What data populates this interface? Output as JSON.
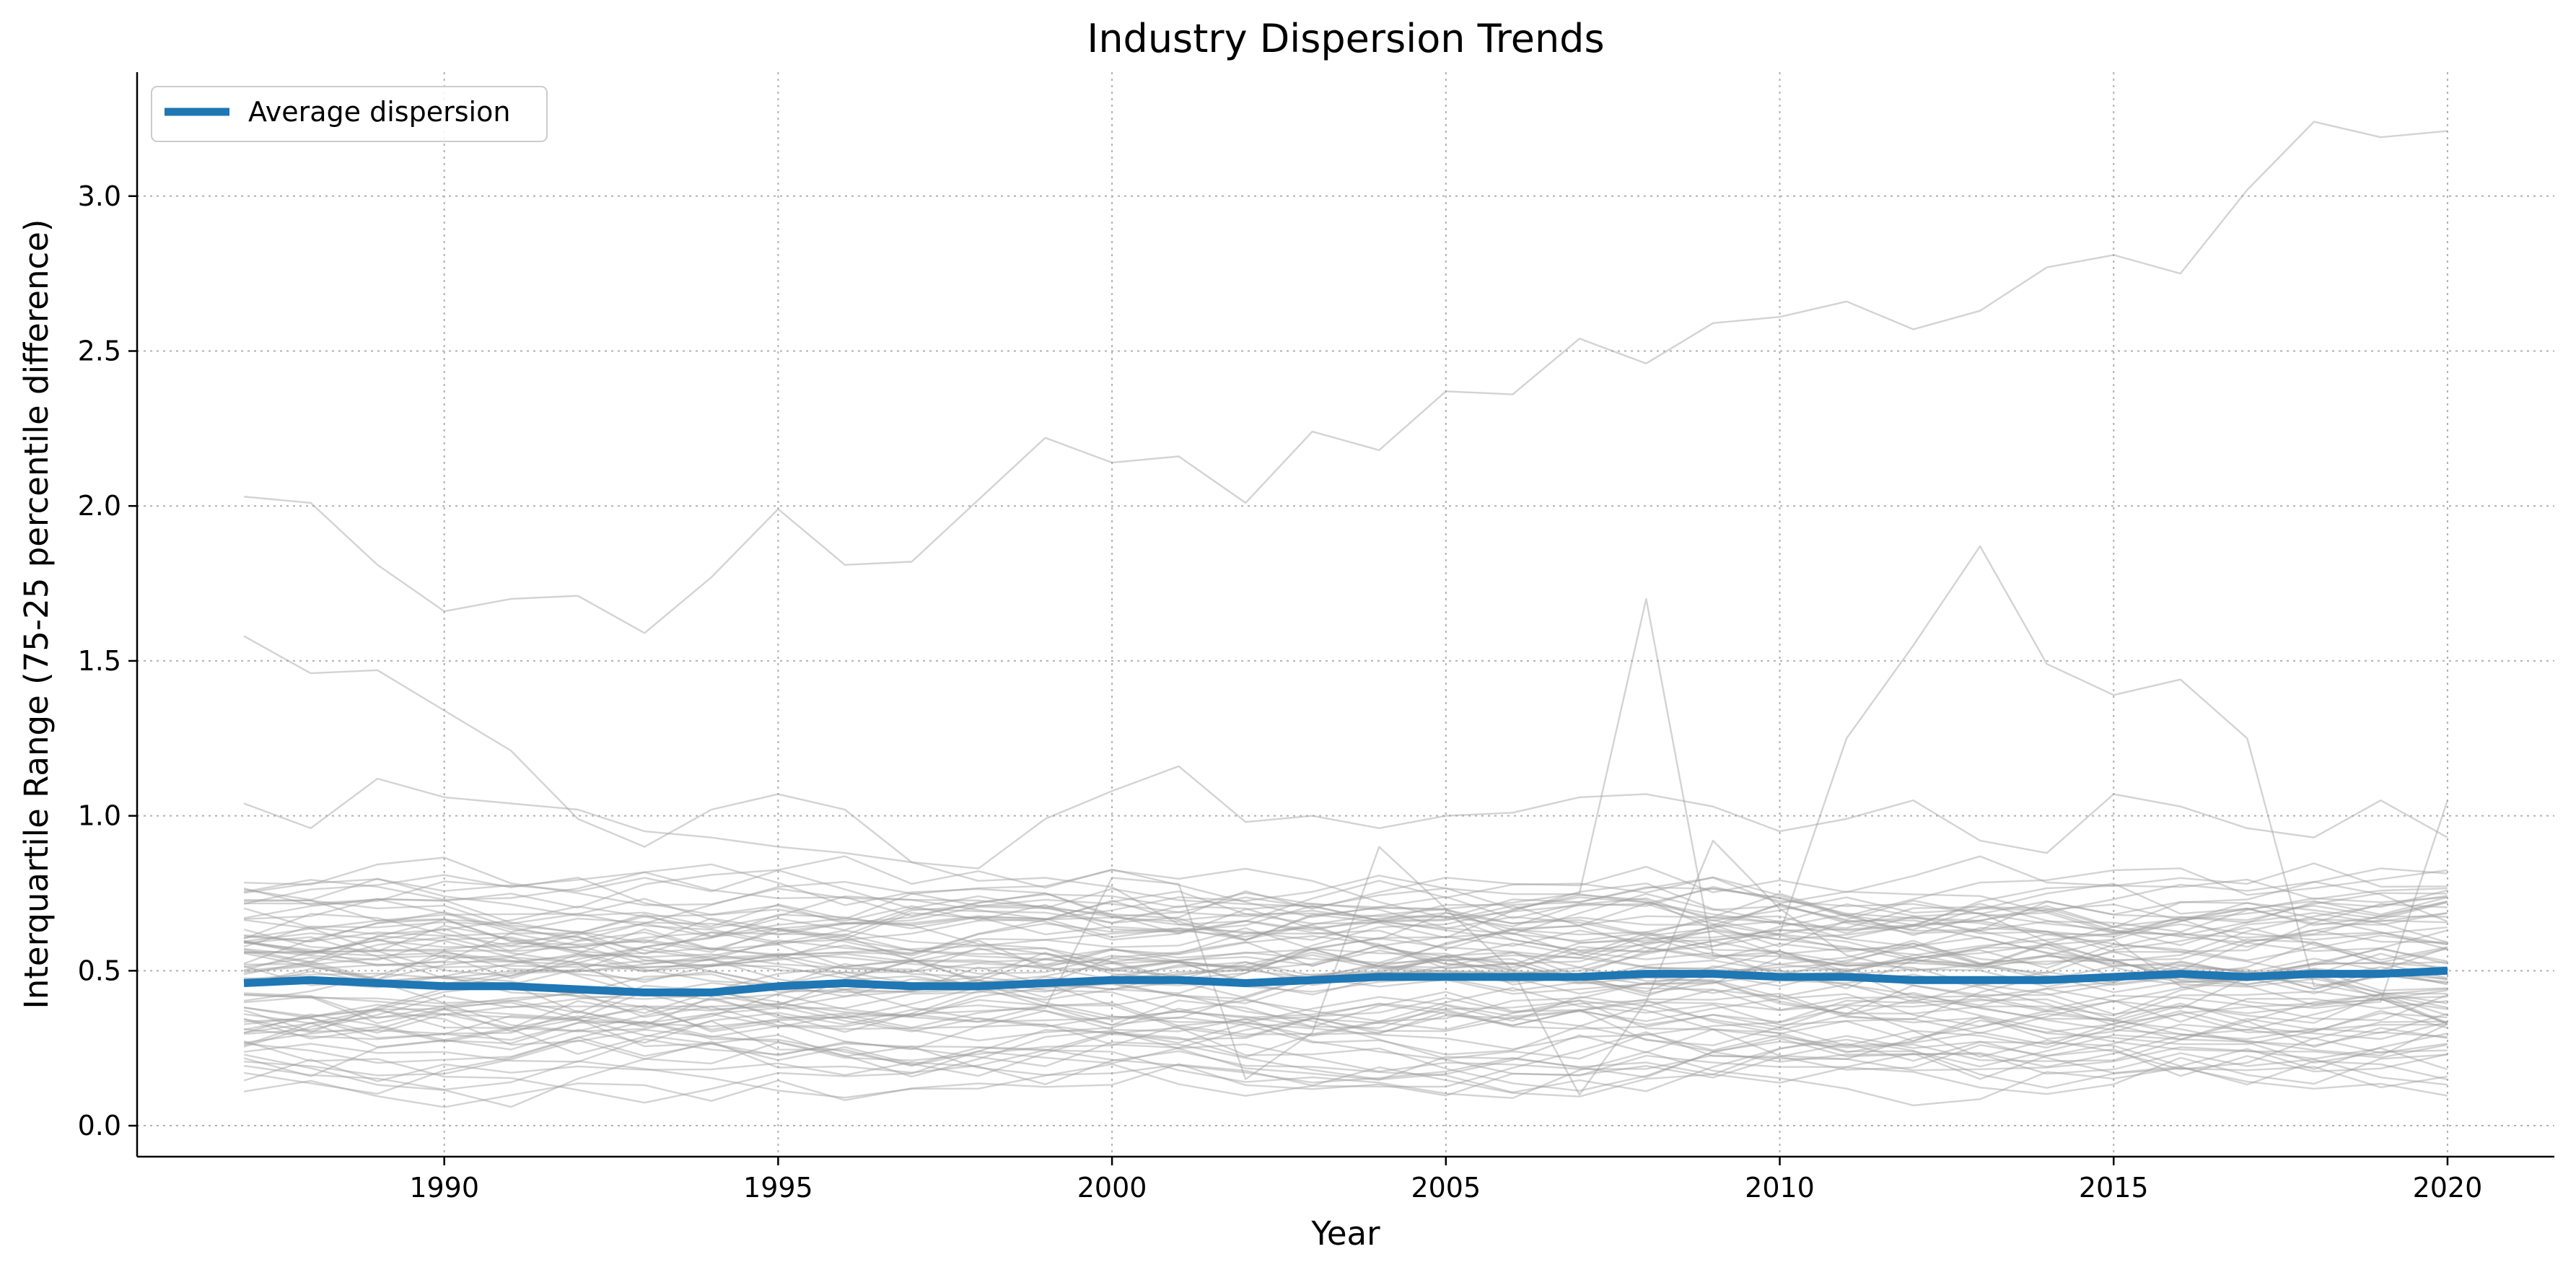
{
  "chart_data": {
    "type": "line",
    "title": "Industry Dispersion Trends",
    "xlabel": "Year",
    "ylabel": "Interquartile Range (75-25 percentile difference)",
    "xlim": [
      1985.4,
      2021.6
    ],
    "ylim": [
      -0.1,
      3.4
    ],
    "xticks": [
      1990,
      1995,
      2000,
      2005,
      2010,
      2015,
      2020
    ],
    "yticks": [
      0.0,
      0.5,
      1.0,
      1.5,
      2.0,
      2.5,
      3.0
    ],
    "ytick_labels": [
      "0.0",
      "0.5",
      "1.0",
      "1.5",
      "2.0",
      "2.5",
      "3.0"
    ],
    "grid": true,
    "legend": {
      "position": "top-left",
      "entries": [
        "Average dispersion"
      ]
    },
    "colors": {
      "average": "#1f77b4",
      "industry": "#9e9e9e",
      "grid": "#b0b0b0"
    },
    "x": [
      1987,
      1988,
      1989,
      1990,
      1991,
      1992,
      1993,
      1994,
      1995,
      1996,
      1997,
      1998,
      1999,
      2000,
      2001,
      2002,
      2003,
      2004,
      2005,
      2006,
      2007,
      2008,
      2009,
      2010,
      2011,
      2012,
      2013,
      2014,
      2015,
      2016,
      2017,
      2018,
      2019,
      2020
    ],
    "average": {
      "name": "Average dispersion",
      "values": [
        0.46,
        0.47,
        0.46,
        0.45,
        0.45,
        0.44,
        0.43,
        0.43,
        0.45,
        0.46,
        0.45,
        0.45,
        0.46,
        0.47,
        0.47,
        0.46,
        0.47,
        0.48,
        0.48,
        0.48,
        0.48,
        0.49,
        0.49,
        0.48,
        0.48,
        0.47,
        0.47,
        0.47,
        0.48,
        0.49,
        0.48,
        0.49,
        0.49,
        0.5
      ]
    },
    "industry_series_notable": [
      [
        2.03,
        2.01,
        1.81,
        1.66,
        1.7,
        1.71,
        1.59,
        1.77,
        1.99,
        1.81,
        1.82,
        2.02,
        2.22,
        2.14,
        2.16,
        2.01,
        2.24,
        2.18,
        2.37,
        2.36,
        2.54,
        2.46,
        2.59,
        2.61,
        2.66,
        2.57,
        2.63,
        2.77,
        2.81,
        2.75,
        3.02,
        3.24,
        3.19,
        3.21
      ],
      [
        1.58,
        1.46,
        1.47,
        1.34,
        1.21,
        0.99,
        0.9,
        1.02,
        1.07,
        1.02,
        0.85,
        0.79,
        0.8,
        0.77,
        0.65,
        0.62,
        0.64,
        0.58,
        0.61,
        0.58,
        0.63,
        0.59,
        0.6,
        0.62,
        1.25,
        1.55,
        1.87,
        1.49,
        1.39,
        1.44,
        1.25,
        0.45,
        0.48,
        0.5
      ],
      [
        1.04,
        0.96,
        1.12,
        1.06,
        1.04,
        1.02,
        0.95,
        0.93,
        0.9,
        0.88,
        0.85,
        0.83,
        0.99,
        1.08,
        1.16,
        0.98,
        1.0,
        0.96,
        1.0,
        1.01,
        1.06,
        1.07,
        1.03,
        0.95,
        0.99,
        1.05,
        0.92,
        0.88,
        1.07,
        1.03,
        0.96,
        0.93,
        1.05,
        0.93
      ],
      [
        0.5,
        0.52,
        0.54,
        0.55,
        0.53,
        0.52,
        0.51,
        0.52,
        0.55,
        0.56,
        0.57,
        0.58,
        0.6,
        0.62,
        0.63,
        0.61,
        0.65,
        0.68,
        0.7,
        0.72,
        0.75,
        1.7,
        0.55,
        0.52,
        0.5,
        0.55,
        0.58,
        0.6,
        0.62,
        0.65,
        0.62,
        0.6,
        0.62,
        0.64
      ],
      [
        0.3,
        0.33,
        0.35,
        0.36,
        0.35,
        0.34,
        0.33,
        0.32,
        0.34,
        0.35,
        0.36,
        0.37,
        0.38,
        0.8,
        0.78,
        0.15,
        0.3,
        0.9,
        0.7,
        0.5,
        0.1,
        0.4,
        0.92,
        0.7,
        0.55,
        0.5,
        0.52,
        0.55,
        0.6,
        0.45,
        0.4,
        0.38,
        0.4,
        1.05
      ]
    ]
  }
}
